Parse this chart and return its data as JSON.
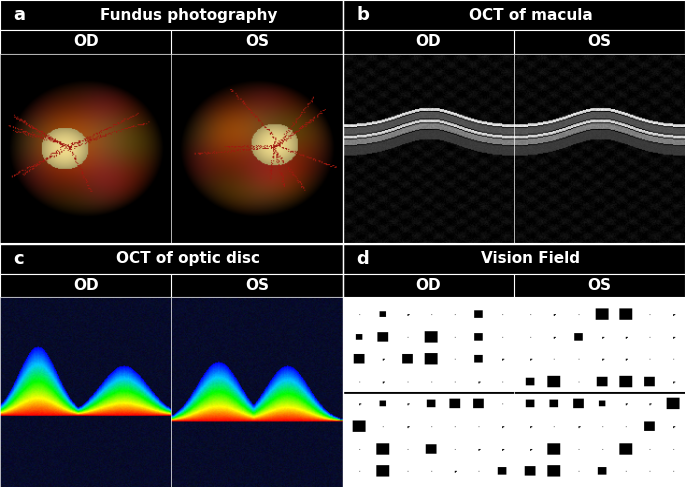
{
  "panel_a_title": "Fundus photography",
  "panel_b_title": "OCT of macula",
  "panel_c_title": "OCT of optic disc",
  "panel_d_title": "Vision Field",
  "label_a": "a",
  "label_b": "b",
  "label_c": "c",
  "label_d": "d",
  "od_label": "OD",
  "os_label": "OS",
  "bg_color": "#000000",
  "header_text_color": "#ffffff",
  "title_fontsize": 11,
  "label_fontsize": 13,
  "od_os_fontsize": 11,
  "fig_width": 6.85,
  "fig_height": 4.87
}
